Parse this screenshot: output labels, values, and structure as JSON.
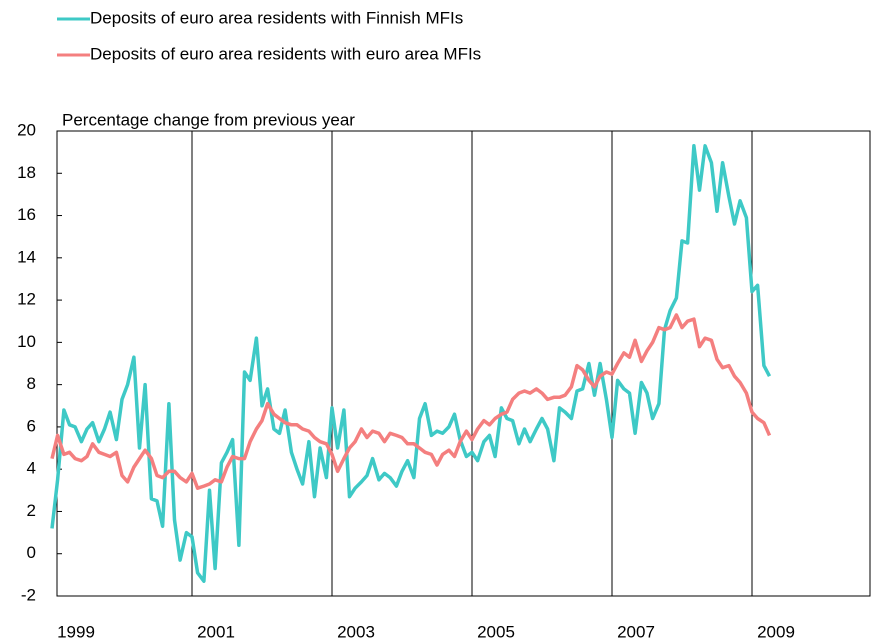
{
  "chart_data": {
    "type": "line",
    "y_axis_label": "Percentage change from previous year",
    "x": [
      1999.0,
      1999.08,
      1999.17,
      1999.25,
      1999.33,
      1999.42,
      1999.5,
      1999.58,
      1999.67,
      1999.75,
      1999.83,
      1999.92,
      2000.0,
      2000.08,
      2000.17,
      2000.25,
      2000.33,
      2000.42,
      2000.5,
      2000.58,
      2000.67,
      2000.75,
      2000.83,
      2000.92,
      2001.0,
      2001.08,
      2001.17,
      2001.25,
      2001.33,
      2001.42,
      2001.5,
      2001.58,
      2001.67,
      2001.75,
      2001.83,
      2001.92,
      2002.0,
      2002.08,
      2002.17,
      2002.25,
      2002.33,
      2002.42,
      2002.5,
      2002.58,
      2002.67,
      2002.75,
      2002.83,
      2002.92,
      2003.0,
      2003.08,
      2003.17,
      2003.25,
      2003.33,
      2003.42,
      2003.5,
      2003.58,
      2003.67,
      2003.75,
      2003.83,
      2003.92,
      2004.0,
      2004.08,
      2004.17,
      2004.25,
      2004.33,
      2004.42,
      2004.5,
      2004.58,
      2004.67,
      2004.75,
      2004.83,
      2004.92,
      2005.0,
      2005.08,
      2005.17,
      2005.25,
      2005.33,
      2005.42,
      2005.5,
      2005.58,
      2005.67,
      2005.75,
      2005.83,
      2005.92,
      2006.0,
      2006.08,
      2006.17,
      2006.25,
      2006.33,
      2006.42,
      2006.5,
      2006.58,
      2006.67,
      2006.75,
      2006.83,
      2006.92,
      2007.0,
      2007.08,
      2007.17,
      2007.25,
      2007.33,
      2007.42,
      2007.5,
      2007.58,
      2007.67,
      2007.75,
      2007.83,
      2007.92,
      2008.0,
      2008.08,
      2008.17,
      2008.25,
      2008.33,
      2008.42,
      2008.5,
      2008.58,
      2008.67,
      2008.75,
      2008.83,
      2008.92,
      2009.0,
      2009.08,
      2009.17,
      2009.25
    ],
    "series": [
      {
        "name": "Deposits of euro area residents with Finnish MFIs",
        "color": "#3ec9c6",
        "values": [
          1.2,
          3.5,
          6.8,
          6.1,
          6.0,
          5.3,
          5.9,
          6.2,
          5.3,
          5.9,
          6.7,
          5.4,
          7.3,
          8.0,
          9.3,
          5.0,
          8.0,
          2.6,
          2.5,
          1.3,
          7.1,
          1.6,
          -0.3,
          1.0,
          0.8,
          -0.9,
          -1.3,
          3.0,
          -0.7,
          4.3,
          4.8,
          5.4,
          0.4,
          8.6,
          8.2,
          10.2,
          7.0,
          7.8,
          5.9,
          5.7,
          6.8,
          4.8,
          4.0,
          3.3,
          5.3,
          2.7,
          5.0,
          3.6,
          6.9,
          5.0,
          6.8,
          2.7,
          3.1,
          3.4,
          3.7,
          4.5,
          3.5,
          3.8,
          3.6,
          3.2,
          3.9,
          4.4,
          3.6,
          6.4,
          7.1,
          5.6,
          5.8,
          5.7,
          6.0,
          6.6,
          5.4,
          4.6,
          4.8,
          4.4,
          5.3,
          5.6,
          4.6,
          6.9,
          6.4,
          6.3,
          5.2,
          5.9,
          5.3,
          5.9,
          6.4,
          5.9,
          4.4,
          6.9,
          6.7,
          6.4,
          7.7,
          7.8,
          9.0,
          7.5,
          9.0,
          7.3,
          5.5,
          8.2,
          7.8,
          7.6,
          5.7,
          8.1,
          7.6,
          6.4,
          7.1,
          10.6,
          11.5,
          12.1,
          14.8,
          14.7,
          19.3,
          17.2,
          19.3,
          18.5,
          16.2,
          18.5,
          16.9,
          15.6,
          16.7,
          15.9,
          12.4,
          12.7,
          8.9,
          8.4
        ]
      },
      {
        "name": "Deposits of euro area residents with euro area MFIs",
        "color": "#f47f7f",
        "values": [
          4.5,
          5.6,
          4.7,
          4.8,
          4.5,
          4.4,
          4.6,
          5.2,
          4.8,
          4.7,
          4.6,
          4.8,
          3.7,
          3.4,
          4.1,
          4.5,
          4.9,
          4.5,
          3.7,
          3.6,
          3.9,
          3.9,
          3.6,
          3.4,
          3.8,
          3.1,
          3.2,
          3.3,
          3.5,
          3.4,
          4.1,
          4.6,
          4.5,
          4.5,
          5.3,
          5.9,
          6.3,
          7.1,
          6.6,
          6.4,
          6.2,
          6.1,
          6.1,
          5.9,
          5.8,
          5.5,
          5.3,
          5.2,
          4.7,
          3.9,
          4.5,
          5.0,
          5.3,
          5.9,
          5.5,
          5.8,
          5.7,
          5.3,
          5.7,
          5.6,
          5.5,
          5.2,
          5.2,
          5.0,
          4.8,
          4.7,
          4.2,
          4.7,
          4.9,
          4.6,
          5.3,
          5.8,
          5.4,
          5.9,
          6.3,
          6.1,
          6.4,
          6.6,
          6.7,
          7.3,
          7.6,
          7.7,
          7.6,
          7.8,
          7.6,
          7.3,
          7.4,
          7.4,
          7.5,
          7.9,
          8.9,
          8.7,
          8.2,
          7.9,
          8.4,
          8.6,
          8.5,
          9.0,
          9.5,
          9.3,
          10.1,
          9.1,
          9.6,
          10.0,
          10.7,
          10.6,
          10.7,
          11.3,
          10.7,
          11.0,
          11.1,
          9.8,
          10.2,
          10.1,
          9.2,
          8.8,
          8.9,
          8.4,
          8.1,
          7.6,
          6.7,
          6.4,
          6.2,
          5.6
        ]
      }
    ],
    "xlim": [
      1999.0,
      2010.75
    ],
    "xticks": [
      1999,
      2001,
      2003,
      2005,
      2007,
      2009
    ],
    "ylim": [
      -2,
      20
    ],
    "yticks": [
      -2,
      0,
      2,
      4,
      6,
      8,
      10,
      12,
      14,
      16,
      18,
      20
    ],
    "grid": "x",
    "legend": "top-left"
  }
}
